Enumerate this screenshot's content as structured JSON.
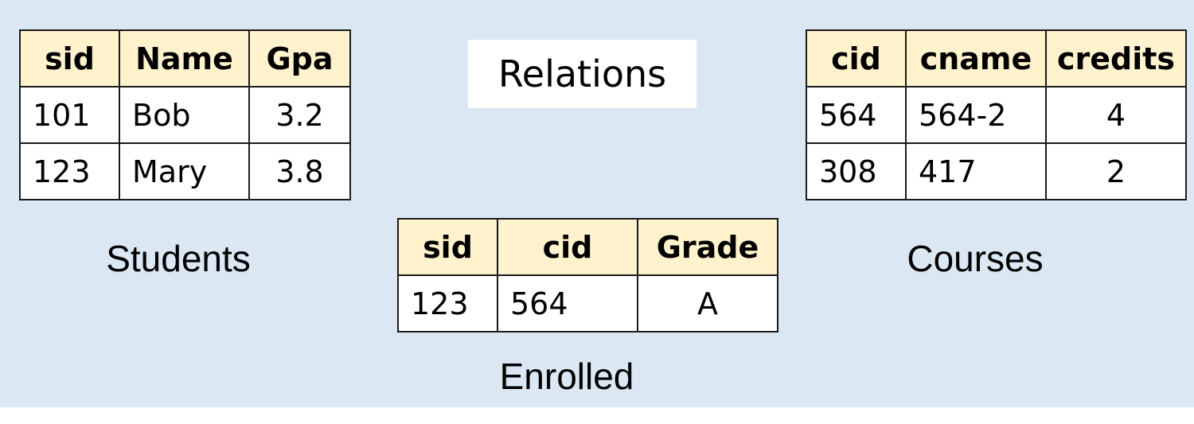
{
  "title": "Relations",
  "students": {
    "caption": "Students",
    "headers": [
      "sid",
      "Name",
      "Gpa"
    ],
    "rows": [
      [
        "101",
        "Bob",
        "3.2"
      ],
      [
        "123",
        "Mary",
        "3.8"
      ]
    ]
  },
  "enrolled": {
    "caption": "Enrolled",
    "headers": [
      "sid",
      "cid",
      "Grade"
    ],
    "rows": [
      [
        "123",
        "564",
        "A"
      ]
    ]
  },
  "courses": {
    "caption": "Courses",
    "headers": [
      "cid",
      "cname",
      "credits"
    ],
    "rows": [
      [
        "564",
        "564-2",
        "4"
      ],
      [
        "308",
        "417",
        "2"
      ]
    ]
  },
  "colors": {
    "background": "#dbe8f4",
    "header_fill": "#fff2cc",
    "border": "#1a1a1a"
  }
}
